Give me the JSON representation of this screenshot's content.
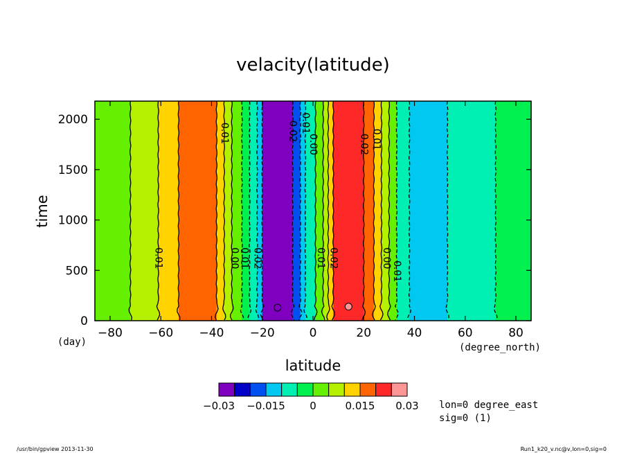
{
  "chart_data": {
    "type": "heatmap",
    "title": "velacity(latitude)",
    "xlabel": "latitude",
    "ylabel": "time",
    "x_unit": "(degree_north)",
    "y_unit": "(day)",
    "xlim": [
      -86,
      86
    ],
    "ylim": [
      0,
      2180
    ],
    "x_ticks": [
      -80,
      -60,
      -40,
      -20,
      0,
      20,
      40,
      60,
      80
    ],
    "x_tick_labels": [
      "−80",
      "−60",
      "−40",
      "−20",
      "0",
      "20",
      "40",
      "60",
      "80"
    ],
    "y_ticks": [
      0,
      500,
      1000,
      1500,
      2000
    ],
    "y_tick_labels": [
      "0",
      "500",
      "1000",
      "1500",
      "2000"
    ],
    "colorbar": {
      "levels": [
        -0.03,
        -0.025,
        -0.02,
        -0.015,
        -0.01,
        -0.005,
        0,
        0.005,
        0.01,
        0.015,
        0.02,
        0.025,
        0.03
      ],
      "colors": [
        "#7f00bf",
        "#0000c8",
        "#0050f0",
        "#00c8f0",
        "#00f0b4",
        "#00f050",
        "#64f000",
        "#b4f000",
        "#ffd200",
        "#ff6400",
        "#ff2828",
        "#ff9696"
      ],
      "tick_labels": [
        "−0.03",
        "−0.015",
        "0",
        "0.015",
        "0.03"
      ],
      "tick_values": [
        -0.03,
        -0.015,
        0,
        0.015,
        0.03
      ]
    },
    "bands": [
      {
        "x0": -86,
        "x1": -72,
        "value": 0.0025
      },
      {
        "x0": -72,
        "x1": -61,
        "value": 0.0075
      },
      {
        "x0": -61,
        "x1": -53,
        "value": 0.0125
      },
      {
        "x0": -53,
        "x1": -38,
        "value": 0.0175
      },
      {
        "x0": -38,
        "x1": -35,
        "value": 0.0125
      },
      {
        "x0": -35,
        "x1": -32,
        "value": 0.0075
      },
      {
        "x0": -32,
        "x1": -28,
        "value": 0.0025
      },
      {
        "x0": -28,
        "x1": -25,
        "value": -0.0025
      },
      {
        "x0": -25,
        "x1": -22,
        "value": -0.0075
      },
      {
        "x0": -22,
        "x1": -20,
        "value": -0.0125
      },
      {
        "x0": -20,
        "x1": -8,
        "value": -0.0275
      },
      {
        "x0": -8,
        "x1": -5,
        "value": -0.0175
      },
      {
        "x0": -5,
        "x1": -3,
        "value": -0.0125
      },
      {
        "x0": -3,
        "x1": 1,
        "value": -0.0075
      },
      {
        "x0": 1,
        "x1": 4,
        "value": 0.0025
      },
      {
        "x0": 4,
        "x1": 6,
        "value": 0.0075
      },
      {
        "x0": 6,
        "x1": 8,
        "value": 0.0125
      },
      {
        "x0": 8,
        "x1": 20,
        "value": 0.0225
      },
      {
        "x0": 20,
        "x1": 24,
        "value": 0.0175
      },
      {
        "x0": 24,
        "x1": 27,
        "value": 0.0125
      },
      {
        "x0": 27,
        "x1": 30,
        "value": 0.0075
      },
      {
        "x0": 30,
        "x1": 33,
        "value": 0.0025
      },
      {
        "x0": 33,
        "x1": 38,
        "value": -0.0075
      },
      {
        "x0": 38,
        "x1": 53,
        "value": -0.0125
      },
      {
        "x0": 53,
        "x1": 72,
        "value": -0.0075
      },
      {
        "x0": 72,
        "x1": 86,
        "value": -0.0025
      }
    ],
    "contours": [
      {
        "x": -72,
        "style": "solid"
      },
      {
        "x": -61,
        "style": "solid"
      },
      {
        "x": -53,
        "style": "solid"
      },
      {
        "x": -38,
        "style": "solid"
      },
      {
        "x": -35,
        "style": "solid"
      },
      {
        "x": -32,
        "style": "solid"
      },
      {
        "x": -28,
        "style": "dashed"
      },
      {
        "x": -25,
        "style": "dashed"
      },
      {
        "x": -22,
        "style": "dashed"
      },
      {
        "x": -20,
        "style": "dashed"
      },
      {
        "x": -8,
        "style": "dashed"
      },
      {
        "x": -5,
        "style": "dashed"
      },
      {
        "x": -3,
        "style": "dashed"
      },
      {
        "x": 1,
        "style": "solid"
      },
      {
        "x": 4,
        "style": "solid"
      },
      {
        "x": 6,
        "style": "solid"
      },
      {
        "x": 8,
        "style": "solid"
      },
      {
        "x": 20,
        "style": "solid"
      },
      {
        "x": 24,
        "style": "solid"
      },
      {
        "x": 27,
        "style": "solid"
      },
      {
        "x": 30,
        "style": "solid"
      },
      {
        "x": 33,
        "style": "dashed"
      },
      {
        "x": 38,
        "style": "dashed"
      },
      {
        "x": 53,
        "style": "dashed"
      },
      {
        "x": 72,
        "style": "dashed"
      }
    ],
    "contour_labels": [
      {
        "text": "0.01",
        "x": -61,
        "y": 620
      },
      {
        "text": "0.00",
        "x": -31,
        "y": 620
      },
      {
        "text": "0.01",
        "x": -27,
        "y": 620
      },
      {
        "text": "0.02",
        "x": -22,
        "y": 620
      },
      {
        "text": "0.01",
        "x": 3,
        "y": 620
      },
      {
        "text": "0.02",
        "x": 8,
        "y": 620
      },
      {
        "text": "0.00",
        "x": 29,
        "y": 620
      },
      {
        "text": "0.01",
        "x": 33,
        "y": 490
      },
      {
        "text": "0.01",
        "x": -35,
        "y": 1860
      },
      {
        "text": "0.02",
        "x": -8,
        "y": 1880
      },
      {
        "text": "0.01",
        "x": -3,
        "y": 1960
      },
      {
        "text": "0.00",
        "x": 0,
        "y": 1750
      },
      {
        "text": "0.02",
        "x": 20,
        "y": 1750
      },
      {
        "text": "0.01",
        "x": 25,
        "y": 1800
      }
    ],
    "blobs": [
      {
        "x": -14,
        "y": 130,
        "value": -0.0325
      },
      {
        "x": 14,
        "y": 140,
        "value": 0.0325
      }
    ]
  },
  "annotations": {
    "coord_lon": "lon=0 degree_east",
    "coord_sig": "sig=0 (1)",
    "footer_left": "/usr/bin/gpview   2013-11-30",
    "footer_right": "Run1_k20_v.nc@v,lon=0,sig=0"
  }
}
